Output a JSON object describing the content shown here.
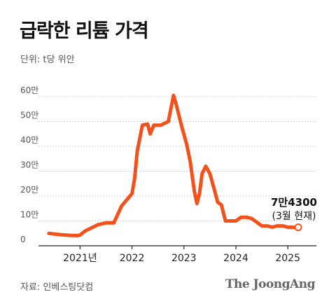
{
  "header": {
    "title": "급락한 리튬 가격",
    "unit": "단위: t당 위안"
  },
  "footer": {
    "source": "자료: 인베스팅닷컴",
    "brand": "The JoongAng"
  },
  "colors": {
    "line": "#f2511b",
    "grid": "#cfcfcf",
    "axis": "#222222",
    "text": "#111111"
  },
  "chart_data": {
    "type": "line",
    "title": "급락한 리튬 가격",
    "ylabel": "단위: t당 위안",
    "xlabel": "",
    "ylim": [
      0,
      600000
    ],
    "xlim": [
      2020.2,
      2025.55
    ],
    "y_ticks": [
      {
        "value": 0,
        "label": "0"
      },
      {
        "value": 100000,
        "label": "10만"
      },
      {
        "value": 200000,
        "label": "20만"
      },
      {
        "value": 300000,
        "label": "30만"
      },
      {
        "value": 400000,
        "label": "40만"
      },
      {
        "value": 500000,
        "label": "50만"
      },
      {
        "value": 600000,
        "label": "60만"
      }
    ],
    "x_ticks": [
      {
        "value": 2021.0,
        "label": "2021년"
      },
      {
        "value": 2022.0,
        "label": "2022"
      },
      {
        "value": 2023.0,
        "label": "2023"
      },
      {
        "value": 2024.0,
        "label": "2024"
      },
      {
        "value": 2025.0,
        "label": "2025"
      }
    ],
    "grid": true,
    "series": [
      {
        "x": [
          2020.4,
          2020.6,
          2020.8,
          2020.95,
          2021.0,
          2021.1,
          2021.25,
          2021.35,
          2021.5,
          2021.65,
          2021.8,
          2021.92,
          2022.0,
          2022.05,
          2022.1,
          2022.2,
          2022.3,
          2022.35,
          2022.42,
          2022.5,
          2022.55,
          2022.6,
          2022.7,
          2022.8,
          2022.85,
          2022.95,
          2023.05,
          2023.12,
          2023.2,
          2023.25,
          2023.3,
          2023.35,
          2023.42,
          2023.5,
          2023.58,
          2023.65,
          2023.72,
          2023.8,
          2023.9,
          2024.0,
          2024.1,
          2024.2,
          2024.3,
          2024.4,
          2024.5,
          2024.6,
          2024.7,
          2024.8,
          2024.9,
          2025.0,
          2025.1,
          2025.2
        ],
        "values": [
          50000,
          45000,
          42000,
          41000,
          43000,
          60000,
          75000,
          85000,
          92000,
          92000,
          160000,
          190000,
          210000,
          270000,
          380000,
          485000,
          490000,
          450000,
          485000,
          485000,
          485000,
          490000,
          500000,
          605000,
          570000,
          485000,
          410000,
          340000,
          220000,
          170000,
          210000,
          290000,
          320000,
          290000,
          230000,
          175000,
          165000,
          100000,
          100000,
          100000,
          115000,
          115000,
          110000,
          95000,
          80000,
          80000,
          75000,
          80000,
          80000,
          75000,
          74300,
          74300
        ]
      }
    ],
    "annotation": {
      "value_label": "7만4300",
      "sub_label": "(3월 현재)",
      "x": 2025.2,
      "y": 74300
    }
  }
}
